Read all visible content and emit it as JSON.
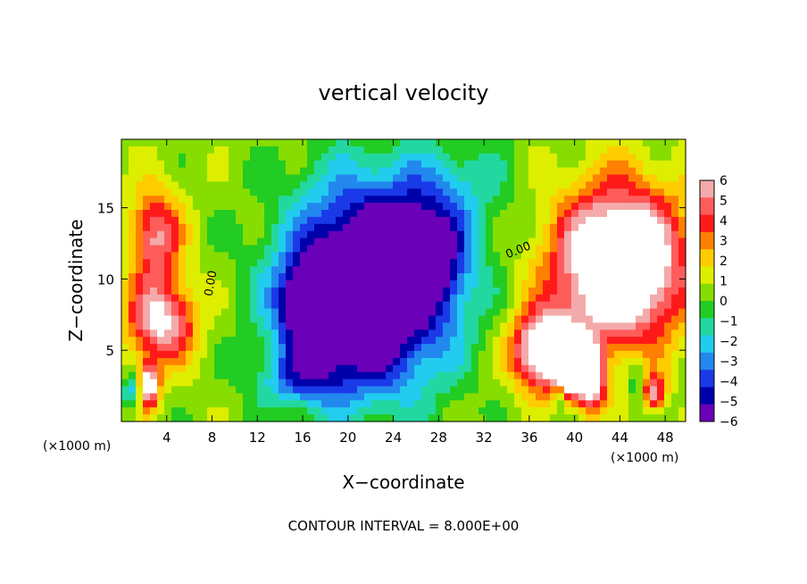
{
  "chart_data": {
    "type": "heatmap",
    "title": "vertical velocity",
    "xlabel": "X−coordinate",
    "ylabel": "Z−coordinate",
    "x_unit_left": "(×1000 m)",
    "x_unit_right": "(×1000 m)",
    "footer": "CONTOUR INTERVAL = 8.000E+00",
    "xlim": [
      0,
      49.8
    ],
    "ylim": [
      0,
      19.8
    ],
    "x_ticks": [
      4,
      8,
      12,
      16,
      20,
      24,
      28,
      32,
      36,
      40,
      44,
      48
    ],
    "y_ticks": [
      5,
      10,
      15
    ],
    "colorbar": {
      "range": [
        -6,
        6
      ],
      "ticks": [
        "6",
        "5",
        "4",
        "3",
        "2",
        "1",
        "0",
        "−1",
        "−2",
        "−3",
        "−4",
        "−5",
        "−6"
      ],
      "colors": [
        "#f4aaaa",
        "#ff5c5c",
        "#ff1a1a",
        "#ff7f00",
        "#ffcc00",
        "#ddee00",
        "#88dd00",
        "#22cc22",
        "#22d8a0",
        "#22ccee",
        "#2288ee",
        "#1a3ae8",
        "#0000aa",
        "#6a00b8"
      ]
    },
    "grid": false,
    "contour_labels": [
      "0.00",
      "0.00"
    ],
    "features": [
      {
        "kind": "updraft",
        "x": 44,
        "z": 11,
        "sx": 5.5,
        "sz": 5.2,
        "w": 10
      },
      {
        "kind": "updraft",
        "x": 37.5,
        "z": 5,
        "sx": 2.8,
        "sz": 2.6,
        "w": 9
      },
      {
        "kind": "updraft",
        "x": 39.5,
        "z": 3.5,
        "sx": 1.2,
        "sz": 1.8,
        "w": 7
      },
      {
        "kind": "updraft",
        "x": 41.5,
        "z": 3,
        "sx": 1.2,
        "sz": 2.2,
        "w": 7
      },
      {
        "kind": "updraft",
        "x": 47,
        "z": 2,
        "sx": 1,
        "sz": 1.2,
        "w": 5
      },
      {
        "kind": "updraft",
        "x": 3,
        "z": 13,
        "sx": 2.2,
        "sz": 3.2,
        "w": 5
      },
      {
        "kind": "updraft",
        "x": 3.5,
        "z": 7,
        "sx": 3,
        "sz": 2.8,
        "w": 6
      },
      {
        "kind": "updraft",
        "x": 2.4,
        "z": 2.5,
        "sx": 0.9,
        "sz": 1.6,
        "w": 7
      },
      {
        "kind": "downdraft",
        "x": 22,
        "z": 9.5,
        "sx": 7,
        "sz": 7,
        "w": -10
      },
      {
        "kind": "downdraft",
        "x": 17,
        "z": 8,
        "sx": 3,
        "sz": 3,
        "w": -6
      },
      {
        "kind": "downdraft",
        "x": 27,
        "z": 12,
        "sx": 3.5,
        "sz": 3.5,
        "w": -4
      },
      {
        "kind": "downdraft",
        "x": 16,
        "z": 3,
        "sx": 4,
        "sz": 2,
        "w": -3
      },
      {
        "kind": "downdraft",
        "x": 1,
        "z": 2,
        "sx": 1,
        "sz": 1.2,
        "w": -3
      },
      {
        "kind": "downdraft",
        "x": 38.7,
        "z": 2,
        "sx": 0.6,
        "sz": 1.4,
        "w": -3
      },
      {
        "kind": "downdraft",
        "x": 45.5,
        "z": 3,
        "sx": 0.7,
        "sz": 2,
        "w": -2
      },
      {
        "kind": "downdraft",
        "x": 30,
        "z": 17,
        "sx": 5,
        "sz": 3,
        "w": -1.5
      }
    ]
  }
}
